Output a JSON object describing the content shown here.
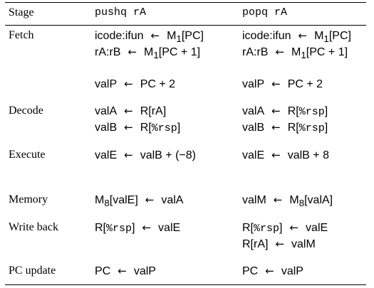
{
  "header": {
    "stage": "Stage",
    "col1": "pushq rA",
    "col2": "popq rA"
  },
  "rows": {
    "fetch": {
      "stage": "Fetch",
      "c1": [
        {
          "lhs": "icode:ifun",
          "rhs": "M",
          "sub": "1",
          "rhs2": "[PC]"
        },
        {
          "lhs": "rA:rB",
          "rhs": "M",
          "sub": "1",
          "rhs2": "[PC + 1]"
        },
        {
          "lhs": "valP",
          "rhs": "PC + 2"
        }
      ],
      "c2": [
        {
          "lhs": "icode:ifun",
          "rhs": "M",
          "sub": "1",
          "rhs2": "[PC]"
        },
        {
          "lhs": "rA:rB",
          "rhs": "M",
          "sub": "1",
          "rhs2": "[PC + 1]"
        },
        {
          "lhs": "valP",
          "rhs": "PC + 2"
        }
      ]
    },
    "decode": {
      "stage": "Decode",
      "c1": [
        {
          "lhs": "valA",
          "rhs": "R[rA]"
        },
        {
          "lhs": "valB",
          "rhs_pre": "R[",
          "reg": "%rsp",
          "rhs_post": "]"
        }
      ],
      "c2": [
        {
          "lhs": "valA",
          "rhs_pre": "R[",
          "reg": "%rsp",
          "rhs_post": "]"
        },
        {
          "lhs": "valB",
          "rhs_pre": "R[",
          "reg": "%rsp",
          "rhs_post": "]"
        }
      ]
    },
    "execute": {
      "stage": "Execute",
      "c1": [
        {
          "lhs": "valE",
          "rhs": "valB + (−8)"
        }
      ],
      "c2": [
        {
          "lhs": "valE",
          "rhs": "valB + 8"
        }
      ]
    },
    "memory": {
      "stage": "Memory",
      "c1": [
        {
          "lhs_pre": "M",
          "lhs_sub": "8",
          "lhs_post": "[valE]",
          "rhs": "valA"
        }
      ],
      "c2": [
        {
          "lhs": "valM",
          "rhs": "M",
          "sub": "8",
          "rhs2": "[valA]"
        }
      ]
    },
    "writeback": {
      "stage": "Write back",
      "c1": [
        {
          "lhs_pre": "R[",
          "reg": "%rsp",
          "lhs_post": "]",
          "rhs": "valE"
        }
      ],
      "c2": [
        {
          "lhs_pre": "R[",
          "reg": "%rsp",
          "lhs_post": "]",
          "rhs": "valE"
        },
        {
          "lhs": "R[rA]",
          "rhs": "valM"
        }
      ]
    },
    "pcupdate": {
      "stage": "PC update",
      "c1": [
        {
          "lhs": "PC",
          "rhs": "valP"
        }
      ],
      "c2": [
        {
          "lhs": "PC",
          "rhs": "valP"
        }
      ]
    }
  }
}
